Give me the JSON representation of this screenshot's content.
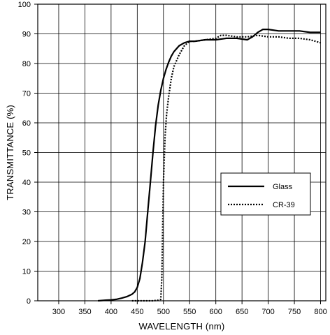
{
  "chart_data": {
    "type": "line",
    "xlabel": "WAVELENGTH (nm)",
    "ylabel": "TRANSMITTANCE (%)",
    "xlim": [
      260,
      810
    ],
    "ylim": [
      0,
      100
    ],
    "x_ticks": [
      300,
      350,
      400,
      450,
      500,
      550,
      600,
      650,
      700,
      750,
      800
    ],
    "y_ticks": [
      0,
      10,
      20,
      30,
      40,
      50,
      60,
      70,
      80,
      90,
      100
    ],
    "grid": true,
    "legend_position": "center-right",
    "series": [
      {
        "name": "Glass",
        "style": "solid",
        "color": "#000000",
        "x": [
          375,
          390,
          400,
          410,
          420,
          430,
          440,
          445,
          450,
          455,
          460,
          465,
          470,
          475,
          480,
          485,
          490,
          495,
          500,
          505,
          510,
          515,
          520,
          530,
          540,
          550,
          560,
          580,
          600,
          620,
          640,
          660,
          670,
          680,
          690,
          700,
          720,
          740,
          760,
          780,
          800
        ],
        "y": [
          0,
          0.2,
          0.3,
          0.5,
          0.9,
          1.4,
          2.2,
          3.0,
          4.5,
          7.5,
          13,
          20,
          30,
          40,
          50,
          59,
          66,
          71,
          75,
          78,
          80.5,
          82.5,
          84,
          86,
          87,
          87.5,
          87.5,
          88,
          88,
          88.5,
          88.5,
          88,
          89,
          90.5,
          91.5,
          91.5,
          91,
          91,
          91,
          90.5,
          90.5
        ]
      },
      {
        "name": "CR-39",
        "style": "dotted",
        "color": "#000000",
        "x": [
          440,
          460,
          480,
          490,
          495,
          497,
          500,
          503,
          506,
          510,
          515,
          520,
          530,
          540,
          550,
          560,
          580,
          600,
          610,
          620,
          640,
          660,
          680,
          700,
          720,
          740,
          760,
          780,
          790,
          800
        ],
        "y": [
          0,
          0,
          0,
          0.2,
          0.5,
          8,
          40,
          55,
          63,
          69,
          75,
          79,
          83,
          86,
          87.5,
          87.5,
          88,
          88.5,
          89.5,
          89.5,
          89,
          89,
          89.5,
          89,
          89,
          88.5,
          88.5,
          88,
          87.5,
          87
        ]
      }
    ]
  }
}
